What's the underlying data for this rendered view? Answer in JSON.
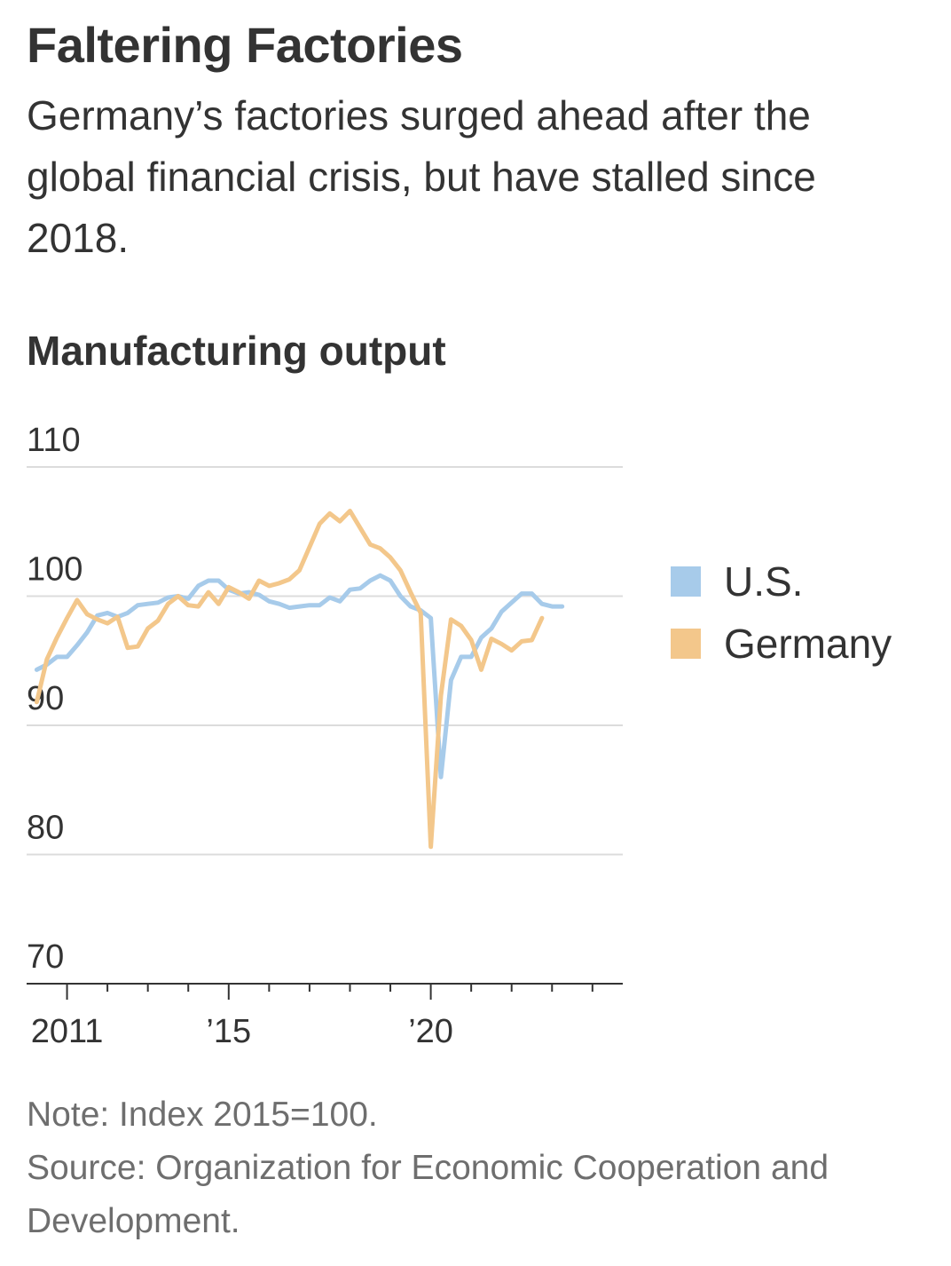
{
  "header": {
    "title": "Faltering Factories",
    "subtitle": "Germany’s factories surged ahead after the global financial crisis, but have stalled since 2018."
  },
  "footer": {
    "note": "Note: Index 2015=100.",
    "source": "Source: Organization for Economic Cooperation and Development."
  },
  "colors": {
    "us": "#a7cbea",
    "germany": "#f3c78b",
    "grid": "#dcdcdc",
    "axis": "#333333"
  },
  "chart_data": {
    "type": "line",
    "title": "Manufacturing output",
    "xlabel": "",
    "ylabel": "",
    "ylim": [
      70,
      110
    ],
    "xlim": [
      2010.0,
      2024.75
    ],
    "yticks": [
      110,
      100,
      90,
      80,
      70
    ],
    "xticks": [
      {
        "value": 2011,
        "label": "2011"
      },
      {
        "value": 2015,
        "label": "’15"
      },
      {
        "value": 2020,
        "label": "’20"
      }
    ],
    "minor_xticks": [
      2012,
      2013,
      2014,
      2016,
      2017,
      2018,
      2019,
      2021,
      2022,
      2023,
      2024
    ],
    "grid": true,
    "legend_position": "right",
    "series": [
      {
        "name": "U.S.",
        "color_key": "us",
        "points": [
          [
            2010.25,
            94.3
          ],
          [
            2010.5,
            94.7
          ],
          [
            2010.75,
            95.3
          ],
          [
            2011.0,
            95.3
          ],
          [
            2011.25,
            96.2
          ],
          [
            2011.5,
            97.2
          ],
          [
            2011.75,
            98.5
          ],
          [
            2012.0,
            98.7
          ],
          [
            2012.25,
            98.4
          ],
          [
            2012.5,
            98.7
          ],
          [
            2012.75,
            99.3
          ],
          [
            2013.0,
            99.4
          ],
          [
            2013.25,
            99.5
          ],
          [
            2013.5,
            99.9
          ],
          [
            2013.75,
            100.0
          ],
          [
            2014.0,
            99.8
          ],
          [
            2014.25,
            100.8
          ],
          [
            2014.5,
            101.2
          ],
          [
            2014.75,
            101.2
          ],
          [
            2015.0,
            100.5
          ],
          [
            2015.25,
            100.2
          ],
          [
            2015.5,
            100.3
          ],
          [
            2015.75,
            100.1
          ],
          [
            2016.0,
            99.6
          ],
          [
            2016.25,
            99.4
          ],
          [
            2016.5,
            99.1
          ],
          [
            2016.75,
            99.2
          ],
          [
            2017.0,
            99.3
          ],
          [
            2017.25,
            99.3
          ],
          [
            2017.5,
            99.9
          ],
          [
            2017.75,
            99.6
          ],
          [
            2018.0,
            100.5
          ],
          [
            2018.25,
            100.6
          ],
          [
            2018.5,
            101.2
          ],
          [
            2018.75,
            101.6
          ],
          [
            2019.0,
            101.2
          ],
          [
            2019.25,
            100.0
          ],
          [
            2019.5,
            99.2
          ],
          [
            2019.75,
            98.9
          ],
          [
            2020.0,
            98.3
          ],
          [
            2020.25,
            86.0
          ],
          [
            2020.5,
            93.5
          ],
          [
            2020.75,
            95.3
          ],
          [
            2021.0,
            95.3
          ],
          [
            2021.25,
            96.8
          ],
          [
            2021.5,
            97.5
          ],
          [
            2021.75,
            98.8
          ],
          [
            2022.0,
            99.5
          ],
          [
            2022.25,
            100.2
          ],
          [
            2022.5,
            100.2
          ],
          [
            2022.75,
            99.4
          ],
          [
            2023.0,
            99.2
          ],
          [
            2023.25,
            99.2
          ]
        ]
      },
      {
        "name": "Germany",
        "color_key": "germany",
        "points": [
          [
            2010.25,
            91.8
          ],
          [
            2010.5,
            95.1
          ],
          [
            2010.75,
            96.8
          ],
          [
            2011.0,
            98.3
          ],
          [
            2011.25,
            99.7
          ],
          [
            2011.5,
            98.6
          ],
          [
            2011.75,
            98.2
          ],
          [
            2012.0,
            97.9
          ],
          [
            2012.25,
            98.4
          ],
          [
            2012.5,
            96.0
          ],
          [
            2012.75,
            96.1
          ],
          [
            2013.0,
            97.5
          ],
          [
            2013.25,
            98.1
          ],
          [
            2013.5,
            99.4
          ],
          [
            2013.75,
            100.0
          ],
          [
            2014.0,
            99.3
          ],
          [
            2014.25,
            99.2
          ],
          [
            2014.5,
            100.3
          ],
          [
            2014.75,
            99.4
          ],
          [
            2015.0,
            100.7
          ],
          [
            2015.25,
            100.3
          ],
          [
            2015.5,
            99.8
          ],
          [
            2015.75,
            101.2
          ],
          [
            2016.0,
            100.8
          ],
          [
            2016.25,
            101.0
          ],
          [
            2016.5,
            101.3
          ],
          [
            2016.75,
            102.0
          ],
          [
            2017.0,
            103.8
          ],
          [
            2017.25,
            105.6
          ],
          [
            2017.5,
            106.4
          ],
          [
            2017.75,
            105.8
          ],
          [
            2018.0,
            106.6
          ],
          [
            2018.25,
            105.3
          ],
          [
            2018.5,
            104.0
          ],
          [
            2018.75,
            103.7
          ],
          [
            2019.0,
            103.0
          ],
          [
            2019.25,
            102.0
          ],
          [
            2019.5,
            100.3
          ],
          [
            2019.75,
            98.7
          ],
          [
            2020.0,
            80.6
          ],
          [
            2020.25,
            92.3
          ],
          [
            2020.5,
            98.2
          ],
          [
            2020.75,
            97.7
          ],
          [
            2021.0,
            96.6
          ],
          [
            2021.25,
            94.3
          ],
          [
            2021.5,
            96.7
          ],
          [
            2021.75,
            96.3
          ],
          [
            2022.0,
            95.8
          ],
          [
            2022.25,
            96.5
          ],
          [
            2022.5,
            96.6
          ],
          [
            2022.75,
            98.3
          ]
        ]
      }
    ]
  }
}
